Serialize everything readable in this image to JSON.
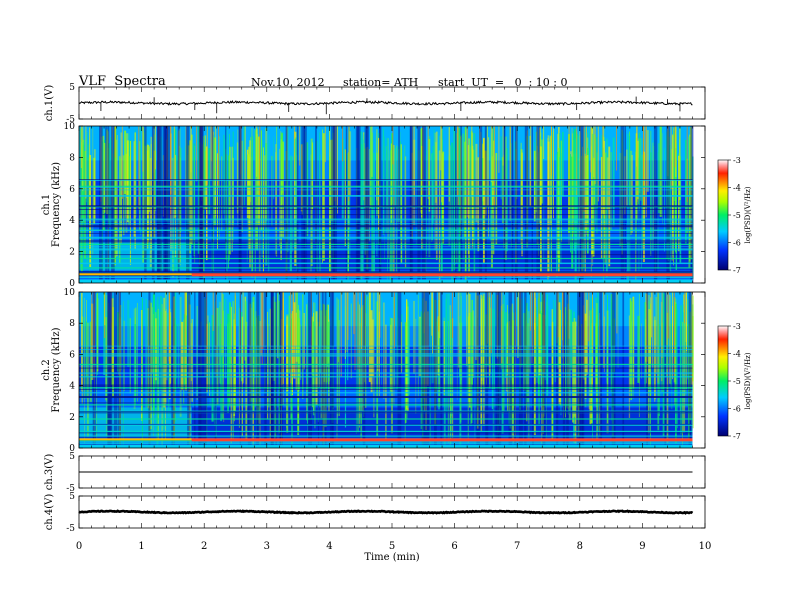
{
  "header": {
    "title": "VLF  Spectra",
    "date": "Nov.10, 2012",
    "station": "station= ATH",
    "start_ut": "start  UT  =   0  : 10 : 0"
  },
  "chart_data": [
    {
      "type": "line",
      "panel": "ch1-waveform",
      "ylabel": "ch.1(V)",
      "ylim": [
        -5,
        5
      ],
      "yticks": [
        5,
        -5
      ],
      "xlim": [
        0,
        10
      ],
      "data_end_min": 9.8,
      "baseline": 0,
      "noise_amplitude": 0.35,
      "spikes": [
        {
          "x": 0.35,
          "y": -2.5
        },
        {
          "x": 1.2,
          "y": 1.8
        },
        {
          "x": 1.85,
          "y": -2.2
        },
        {
          "x": 2.2,
          "y": -3.2
        },
        {
          "x": 3.35,
          "y": -2.8
        },
        {
          "x": 3.95,
          "y": -3.5
        },
        {
          "x": 4.6,
          "y": 1.5
        },
        {
          "x": 6.1,
          "y": -2.5
        },
        {
          "x": 7.95,
          "y": -2.2
        },
        {
          "x": 8.9,
          "y": 2.0
        },
        {
          "x": 9.4,
          "y": 1.2
        },
        {
          "x": 9.6,
          "y": -2.6
        }
      ]
    },
    {
      "type": "heatmap",
      "panel": "ch1-spectrogram",
      "channel_label": "ch.1",
      "ylabel": "Frequency  (kHz)",
      "ylim": [
        0,
        10
      ],
      "yticks": [
        0,
        2,
        4,
        6,
        8,
        10
      ],
      "xlim": [
        0,
        10
      ],
      "data_end_min": 9.8,
      "colorbar": {
        "label": "log(PSD)(V²/Hz)",
        "range": [
          -7,
          -3
        ],
        "ticks": [
          -3,
          -4,
          -5,
          -6,
          -7
        ]
      },
      "hum_lines_khz": [
        0.4,
        0.55,
        0.7,
        1.0,
        1.3,
        1.6,
        2.2,
        2.5,
        2.9,
        3.4,
        4.1,
        4.9,
        5.6,
        6.2
      ],
      "transition_min": 1.8
    },
    {
      "type": "heatmap",
      "panel": "ch2-spectrogram",
      "channel_label": "ch.2",
      "ylabel": "Frequency  (kHz)",
      "ylim": [
        0,
        10
      ],
      "yticks": [
        0,
        2,
        4,
        6,
        8,
        10
      ],
      "xlim": [
        0,
        10
      ],
      "data_end_min": 9.8,
      "colorbar": {
        "label": "log(PSD)(V²/Hz)",
        "range": [
          -7,
          -3
        ],
        "ticks": [
          -3,
          -4,
          -5,
          -6,
          -7
        ]
      },
      "hum_lines_khz": [
        0.35,
        0.5,
        0.8,
        1.1,
        1.5,
        1.9,
        2.4,
        2.8,
        3.3,
        3.9,
        4.6,
        5.4,
        6.0
      ],
      "transition_min": 1.8
    },
    {
      "type": "line",
      "panel": "ch3-waveform",
      "ylabel": "ch.3(V)",
      "ylim": [
        -5,
        5
      ],
      "yticks": [
        5,
        -5
      ],
      "xlim": [
        0,
        10
      ],
      "data_end_min": 9.8,
      "baseline": 0,
      "noise_amplitude": 0.0
    },
    {
      "type": "line",
      "panel": "ch4-waveform",
      "ylabel": "ch.4(V)",
      "ylim": [
        -5,
        5
      ],
      "yticks": [
        5,
        -5
      ],
      "xlim": [
        0,
        10
      ],
      "data_end_min": 9.8,
      "baseline": 0,
      "noise_amplitude": 0.12
    }
  ],
  "x_axis": {
    "label": "Time  (min)",
    "ticks": [
      "0",
      "1",
      "2",
      "3",
      "4",
      "5",
      "6",
      "7",
      "8",
      "9",
      "10"
    ]
  }
}
